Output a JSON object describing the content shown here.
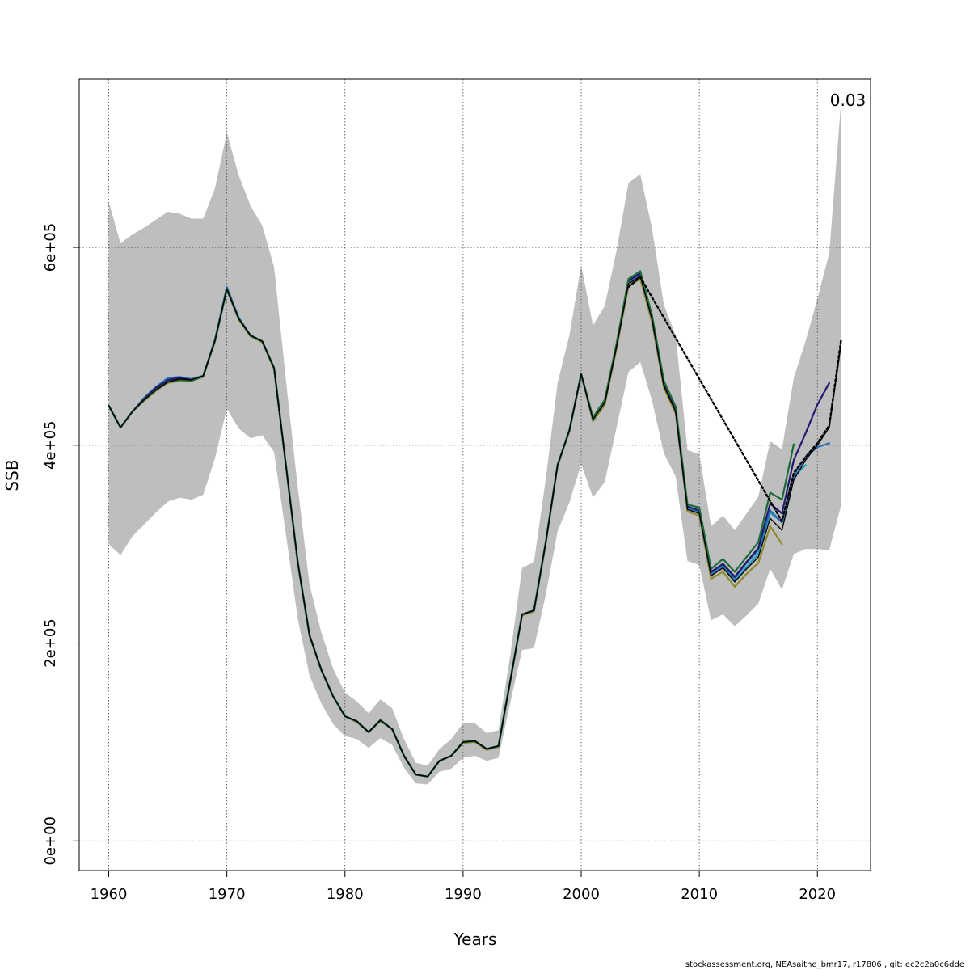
{
  "chart_data": {
    "type": "line",
    "title": "",
    "xlabel": "Years",
    "ylabel": "SSB",
    "xlim": [
      1957.5,
      2024.5
    ],
    "ylim": [
      -30000,
      770000
    ],
    "x_ticks": [
      1960,
      1970,
      1980,
      1990,
      2000,
      2010,
      2020
    ],
    "x_tick_labels": [
      "1960",
      "1970",
      "1980",
      "1990",
      "2000",
      "2010",
      "2020"
    ],
    "y_ticks": [
      0,
      200000,
      400000,
      600000
    ],
    "y_tick_labels": [
      "0e+00",
      "2e+05",
      "4e+05",
      "6e+05"
    ],
    "grid": true,
    "annotation": "0.03",
    "footer": "stockassessment.org, NEAsaithe_bmr17, r17806 , git: ec2c2a0c6dde",
    "colors": {
      "band": "#bebebe",
      "base_line": "#000000",
      "peel1": "#2a6db5",
      "peel2": "#24186e",
      "peel3": "#1aa0c7",
      "peel4": "#1b6b3a",
      "peel5": "#8e8a2e"
    },
    "confidence_band": {
      "years": [
        1960,
        1961,
        1962,
        1963,
        1964,
        1965,
        1966,
        1967,
        1968,
        1969,
        1970,
        1971,
        1972,
        1973,
        1974,
        1975,
        1976,
        1977,
        1978,
        1979,
        1980,
        1981,
        1982,
        1983,
        1984,
        1985,
        1986,
        1987,
        1988,
        1989,
        1990,
        1991,
        1992,
        1993,
        1994,
        1995,
        1996,
        1997,
        1998,
        1999,
        2000,
        2001,
        2002,
        2003,
        2004,
        2005,
        2006,
        2007,
        2008,
        2009,
        2010,
        2011,
        2012,
        2013,
        2014,
        2015,
        2016,
        2017,
        2018,
        2019,
        2020,
        2021,
        2022
      ],
      "lower": [
        300000,
        289000,
        308000,
        320000,
        332000,
        343000,
        347000,
        345000,
        350000,
        387000,
        437000,
        417000,
        407000,
        410000,
        393000,
        310000,
        225000,
        167000,
        139000,
        118000,
        106000,
        103000,
        94000,
        104000,
        97000,
        74000,
        58000,
        57000,
        70000,
        73000,
        84000,
        86000,
        81000,
        84000,
        140000,
        193000,
        195000,
        249000,
        313000,
        342000,
        381000,
        347000,
        363000,
        418000,
        474000,
        484000,
        445000,
        392000,
        368000,
        283000,
        279000,
        223000,
        229000,
        217000,
        228000,
        240000,
        275000,
        254000,
        290000,
        295000,
        295000,
        294000,
        339000
      ],
      "upper": [
        646000,
        604000,
        613000,
        620000,
        628000,
        636000,
        634000,
        629000,
        629000,
        660000,
        716000,
        673000,
        642000,
        622000,
        580000,
        466000,
        358000,
        259000,
        211000,
        174000,
        150000,
        141000,
        129000,
        143000,
        134000,
        103000,
        79000,
        76000,
        93000,
        103000,
        119000,
        119000,
        109000,
        112000,
        188000,
        276000,
        282000,
        366000,
        463000,
        511000,
        582000,
        521000,
        541000,
        597000,
        665000,
        674000,
        619000,
        542000,
        511000,
        395000,
        391000,
        318000,
        329000,
        314000,
        331000,
        348000,
        404000,
        396000,
        468000,
        505000,
        548000,
        594000,
        747000
      ]
    },
    "series": [
      {
        "name": "base",
        "color_key": "base_line",
        "dashed": false,
        "x": [
          1960,
          1961,
          1962,
          1963,
          1964,
          1965,
          1966,
          1967,
          1968,
          1969,
          1970,
          1971,
          1972,
          1973,
          1974,
          1975,
          1976,
          1977,
          1978,
          1979,
          1980,
          1981,
          1982,
          1983,
          1984,
          1985,
          1986,
          1987,
          1988,
          1989,
          1990,
          1991,
          1992,
          1993,
          1994,
          1995,
          1996,
          1997,
          1998,
          1999,
          2000,
          2001,
          2002,
          2003,
          2004,
          2005,
          2006,
          2007,
          2008,
          2009,
          2010,
          2011,
          2012,
          2013,
          2014,
          2015,
          2016,
          2017,
          2018,
          2019,
          2020,
          2021,
          2022
        ],
        "values": [
          440000,
          418000,
          434000,
          446000,
          456000,
          464000,
          467000,
          466000,
          470000,
          506000,
          558000,
          528000,
          511000,
          505000,
          478000,
          380000,
          282000,
          208000,
          173000,
          146000,
          126000,
          121000,
          110000,
          122000,
          113000,
          86000,
          67000,
          65000,
          81000,
          86000,
          100000,
          101000,
          93000,
          96000,
          162000,
          229000,
          233000,
          302000,
          380000,
          415000,
          472000,
          426000,
          443000,
          500000,
          563000,
          571000,
          527000,
          460000,
          434000,
          335000,
          331000,
          268000,
          276000,
          262000,
          275000,
          287000,
          326000,
          314000,
          365000,
          385000,
          400000,
          418000,
          502000
        ]
      },
      {
        "name": "base-projection",
        "color_key": "base_line",
        "dashed": true,
        "x": [
          2004,
          2005,
          2017,
          2018,
          2019,
          2020,
          2021,
          2022
        ],
        "values": [
          560000,
          570000,
          323000,
          372000,
          388000,
          402000,
          420000,
          506000
        ]
      },
      {
        "name": "peel-1",
        "color_key": "peel1",
        "dashed": false,
        "x": [
          1960,
          1961,
          1962,
          1963,
          1964,
          1965,
          1966,
          1967,
          1968,
          1969,
          1970,
          1971,
          1972,
          1973,
          1974,
          1975,
          1976,
          1977,
          1978,
          1979,
          1980,
          1981,
          1982,
          1983,
          1984,
          1985,
          1986,
          1987,
          1988,
          1989,
          1990,
          1991,
          1992,
          1993,
          1994,
          1995,
          1996,
          1997,
          1998,
          1999,
          2000,
          2001,
          2002,
          2003,
          2004,
          2005,
          2006,
          2007,
          2008,
          2009,
          2010,
          2011,
          2012,
          2013,
          2014,
          2015,
          2016,
          2017,
          2018,
          2019,
          2020,
          2021
        ],
        "values": [
          440000,
          418000,
          434000,
          448000,
          459000,
          468000,
          469000,
          467000,
          470000,
          507000,
          560000,
          529000,
          511000,
          505000,
          478000,
          380000,
          282000,
          208000,
          173000,
          146000,
          126000,
          121000,
          110000,
          122000,
          113000,
          86000,
          67000,
          65000,
          81000,
          86000,
          100000,
          101000,
          93000,
          96000,
          162000,
          229000,
          233000,
          302000,
          380000,
          415000,
          472000,
          427000,
          445000,
          501000,
          565000,
          573000,
          528000,
          462000,
          435000,
          337000,
          333000,
          270000,
          279000,
          265000,
          281000,
          294000,
          334000,
          322000,
          369000,
          388000,
          398000,
          402000
        ]
      },
      {
        "name": "peel-2",
        "color_key": "peel2",
        "dashed": false,
        "x": [
          1960,
          1961,
          1962,
          1963,
          1964,
          1965,
          1966,
          1967,
          1968,
          1969,
          1970,
          1971,
          1972,
          1973,
          1974,
          1975,
          1976,
          1977,
          1978,
          1979,
          1980,
          1981,
          1982,
          1983,
          1984,
          1985,
          1986,
          1987,
          1988,
          1989,
          1990,
          1991,
          1992,
          1993,
          1994,
          1995,
          1996,
          1997,
          1998,
          1999,
          2000,
          2001,
          2002,
          2003,
          2004,
          2005,
          2006,
          2007,
          2008,
          2009,
          2010,
          2011,
          2012,
          2013,
          2014,
          2015,
          2016,
          2017,
          2018,
          2019,
          2020,
          2021
        ],
        "values": [
          440000,
          418000,
          434000,
          447000,
          458000,
          466000,
          468000,
          466000,
          470000,
          506000,
          558000,
          528000,
          511000,
          505000,
          478000,
          380000,
          282000,
          208000,
          173000,
          146000,
          126000,
          121000,
          110000,
          122000,
          113000,
          86000,
          67000,
          65000,
          81000,
          86000,
          100000,
          101000,
          93000,
          96000,
          162000,
          229000,
          233000,
          302000,
          380000,
          415000,
          472000,
          427000,
          444000,
          501000,
          566000,
          574000,
          529000,
          462000,
          436000,
          338000,
          334000,
          272000,
          280000,
          267000,
          282000,
          296000,
          341000,
          331000,
          385000,
          412000,
          441000,
          463000
        ]
      },
      {
        "name": "peel-3",
        "color_key": "peel3",
        "dashed": false,
        "x": [
          1960,
          1961,
          1962,
          1963,
          1964,
          1965,
          1966,
          1967,
          1968,
          1969,
          1970,
          1971,
          1972,
          1973,
          1974,
          1975,
          1976,
          1977,
          1978,
          1979,
          1980,
          1981,
          1982,
          1983,
          1984,
          1985,
          1986,
          1987,
          1988,
          1989,
          1990,
          1991,
          1992,
          1993,
          1994,
          1995,
          1996,
          1997,
          1998,
          1999,
          2000,
          2001,
          2002,
          2003,
          2004,
          2005,
          2006,
          2007,
          2008,
          2009,
          2010,
          2011,
          2012,
          2013,
          2014,
          2015,
          2016,
          2017,
          2018,
          2019
        ],
        "values": [
          440000,
          418000,
          434000,
          446000,
          456000,
          465000,
          467000,
          466000,
          470000,
          506000,
          558000,
          528000,
          511000,
          505000,
          478000,
          380000,
          282000,
          208000,
          173000,
          146000,
          126000,
          121000,
          110000,
          122000,
          113000,
          86000,
          67000,
          65000,
          81000,
          86000,
          100000,
          101000,
          93000,
          96000,
          162000,
          229000,
          233000,
          302000,
          380000,
          415000,
          472000,
          426000,
          444000,
          501000,
          566000,
          575000,
          528000,
          462000,
          436000,
          336000,
          332000,
          270000,
          277000,
          262000,
          277000,
          290000,
          332000,
          322000,
          368000,
          380000
        ]
      },
      {
        "name": "peel-4",
        "color_key": "peel4",
        "dashed": false,
        "x": [
          1960,
          1961,
          1962,
          1963,
          1964,
          1965,
          1966,
          1967,
          1968,
          1969,
          1970,
          1971,
          1972,
          1973,
          1974,
          1975,
          1976,
          1977,
          1978,
          1979,
          1980,
          1981,
          1982,
          1983,
          1984,
          1985,
          1986,
          1987,
          1988,
          1989,
          1990,
          1991,
          1992,
          1993,
          1994,
          1995,
          1996,
          1997,
          1998,
          1999,
          2000,
          2001,
          2002,
          2003,
          2004,
          2005,
          2006,
          2007,
          2008,
          2009,
          2010,
          2011,
          2012,
          2013,
          2014,
          2015,
          2016,
          2017,
          2018
        ],
        "values": [
          440000,
          418000,
          434000,
          446000,
          456000,
          464000,
          466000,
          465000,
          470000,
          506000,
          558000,
          528000,
          511000,
          505000,
          478000,
          380000,
          282000,
          208000,
          173000,
          146000,
          126000,
          121000,
          110000,
          122000,
          113000,
          86000,
          67000,
          65000,
          81000,
          86000,
          100000,
          101000,
          93000,
          96000,
          162000,
          229000,
          233000,
          302000,
          380000,
          415000,
          472000,
          428000,
          446000,
          503000,
          568000,
          576000,
          531000,
          465000,
          439000,
          340000,
          337000,
          275000,
          285000,
          272000,
          287000,
          302000,
          352000,
          345000,
          401000
        ]
      },
      {
        "name": "peel-5",
        "color_key": "peel5",
        "dashed": false,
        "x": [
          1960,
          1961,
          1962,
          1963,
          1964,
          1965,
          1966,
          1967,
          1968,
          1969,
          1970,
          1971,
          1972,
          1973,
          1974,
          1975,
          1976,
          1977,
          1978,
          1979,
          1980,
          1981,
          1982,
          1983,
          1984,
          1985,
          1986,
          1987,
          1988,
          1989,
          1990,
          1991,
          1992,
          1993,
          1994,
          1995,
          1996,
          1997,
          1998,
          1999,
          2000,
          2001,
          2002,
          2003,
          2004,
          2005,
          2006,
          2007,
          2008,
          2009,
          2010,
          2011,
          2012,
          2013,
          2014,
          2015,
          2016,
          2017
        ],
        "values": [
          440000,
          418000,
          434000,
          445000,
          455000,
          463000,
          465000,
          465000,
          469000,
          505000,
          557000,
          527000,
          510000,
          504000,
          477000,
          379000,
          281000,
          207000,
          172000,
          146000,
          126000,
          120000,
          110000,
          121000,
          113000,
          86000,
          67000,
          65000,
          81000,
          86000,
          99000,
          100000,
          92000,
          95000,
          161000,
          228000,
          232000,
          301000,
          379000,
          414000,
          471000,
          424000,
          441000,
          498000,
          561000,
          568000,
          524000,
          458000,
          432000,
          333000,
          329000,
          265000,
          272000,
          257000,
          270000,
          281000,
          318000,
          300000
        ]
      }
    ]
  }
}
